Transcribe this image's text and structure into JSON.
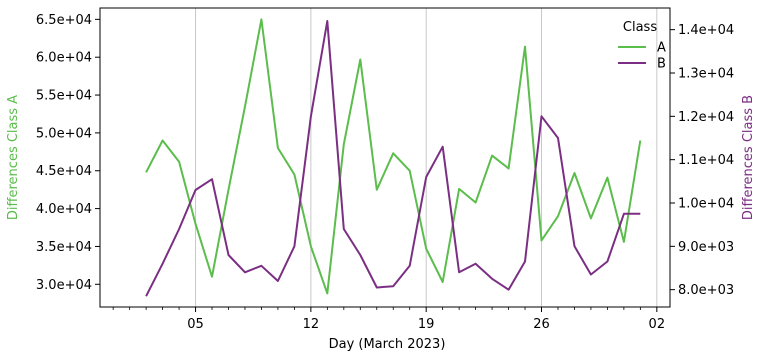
{
  "chart_data": {
    "type": "line",
    "xlabel": "Day (March 2023)",
    "ylabel_left": "Differences Class A",
    "ylabel_right": "Differences Class B",
    "x_ticks": [
      "05",
      "12",
      "19",
      "26",
      "02"
    ],
    "x_tick_days": [
      5,
      12,
      19,
      26,
      33
    ],
    "xlim": [
      -0.8,
      33.8
    ],
    "y_left_ticks": [
      "3.0e+04",
      "3.5e+04",
      "4.0e+04",
      "4.5e+04",
      "5.0e+04",
      "5.5e+04",
      "6.0e+04",
      "6.5e+04"
    ],
    "y_left_tick_values": [
      30000,
      35000,
      40000,
      45000,
      50000,
      55000,
      60000,
      65000
    ],
    "ylim_left": [
      27000,
      66500
    ],
    "y_right_ticks": [
      "8.0e+03",
      "9.0e+03",
      "1.0e+04",
      "1.1e+04",
      "1.2e+04",
      "1.3e+04",
      "1.4e+04"
    ],
    "y_right_tick_values": [
      8000,
      9000,
      10000,
      11000,
      12000,
      13000,
      14000
    ],
    "ylim_right": [
      7600,
      14500
    ],
    "grid": "vertical lines at major x ticks",
    "legend": {
      "title": "Class",
      "position": "top-right"
    },
    "series": [
      {
        "name": "A",
        "axis": "left",
        "color": "#5bbd4b",
        "x": [
          2,
          3,
          4,
          5,
          6,
          7,
          8,
          9,
          10,
          11,
          12,
          13,
          14,
          15,
          16,
          17,
          18,
          19,
          20,
          21,
          22,
          23,
          24,
          25,
          26,
          27,
          28,
          29,
          30,
          31,
          32
        ],
        "values": [
          44800,
          49000,
          46200,
          38000,
          31000,
          42500,
          53500,
          65000,
          48000,
          44500,
          35000,
          28800,
          48500,
          59700,
          42500,
          47300,
          45000,
          34700,
          30300,
          42600,
          40800,
          47000,
          45300,
          61400,
          35800,
          39000,
          44700,
          38700,
          44100,
          35600,
          49000
        ]
      },
      {
        "name": "B",
        "axis": "right",
        "color": "#7b2f83",
        "x": [
          2,
          3,
          4,
          5,
          6,
          7,
          8,
          9,
          10,
          11,
          12,
          13,
          14,
          15,
          16,
          17,
          18,
          19,
          20,
          21,
          22,
          23,
          24,
          25,
          26,
          27,
          28,
          29,
          30,
          31,
          32
        ],
        "values": [
          7850,
          8600,
          9400,
          10300,
          10550,
          8800,
          8400,
          8550,
          8200,
          9000,
          12000,
          14200,
          9400,
          8800,
          8050,
          8080,
          8550,
          10600,
          11300,
          8400,
          8600,
          8250,
          8000,
          8650,
          12000,
          11500,
          9000,
          8350,
          8650,
          9750,
          9750
        ]
      }
    ]
  }
}
